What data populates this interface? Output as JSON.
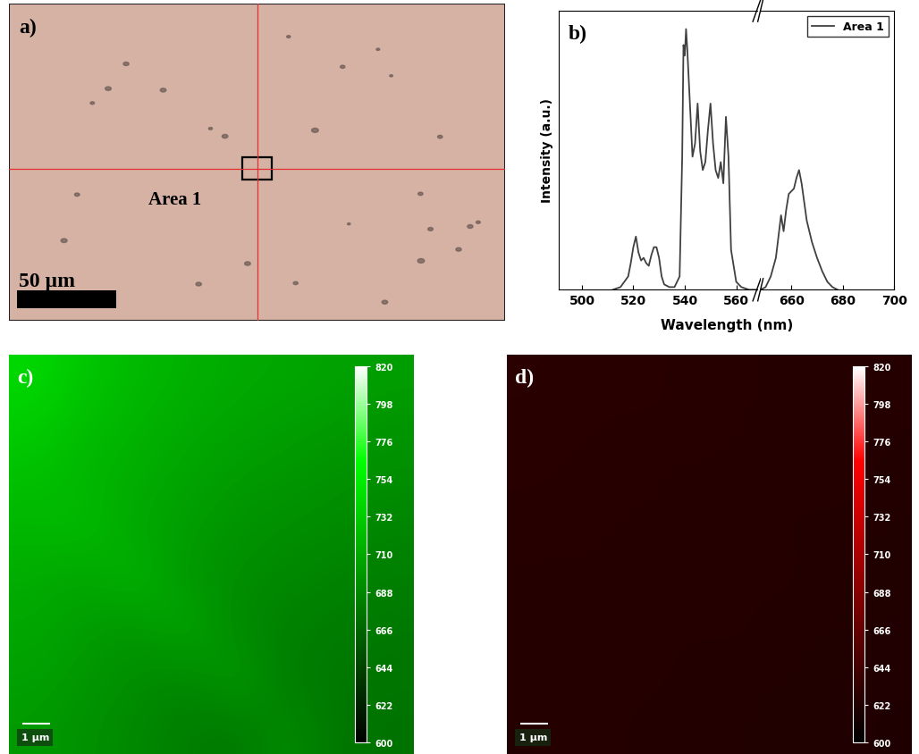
{
  "chart_data": [
    {
      "type": "image",
      "label": "a)",
      "annotations": [
        "Area 1",
        "50 µm"
      ],
      "color": "#d6b2a4"
    },
    {
      "type": "line",
      "label": "b)",
      "x_label": "Wavelength (nm)",
      "y_label": "Intensity (a.u.)",
      "xlim": [
        [
          491,
          568
        ],
        [
          648,
          700
        ]
      ],
      "xticks": [
        500,
        520,
        540,
        560,
        660,
        680,
        700
      ],
      "ylim": [
        0,
        1.05
      ],
      "tick_labels": "x",
      "legend": "upper right",
      "series": [
        {
          "name": "Area 1",
          "color": "#404040",
          "x": [
            512,
            515,
            518,
            519,
            520,
            521,
            522,
            523,
            524,
            525,
            526,
            527,
            528,
            529,
            530,
            531,
            532,
            534,
            536,
            538,
            539,
            539.5,
            540,
            540.5,
            541,
            542,
            543,
            544,
            545,
            546,
            547,
            548,
            549,
            550,
            551,
            552,
            553,
            554,
            555,
            556,
            557,
            558,
            560,
            562,
            565,
            570,
            648,
            650,
            652,
            654,
            655,
            656,
            657,
            658,
            659,
            660,
            661,
            662,
            663,
            664,
            665,
            666,
            668,
            670,
            672,
            674,
            676,
            678
          ],
          "values": [
            0,
            0.01,
            0.05,
            0.1,
            0.16,
            0.2,
            0.14,
            0.11,
            0.12,
            0.1,
            0.09,
            0.13,
            0.16,
            0.16,
            0.12,
            0.05,
            0.02,
            0.01,
            0.01,
            0.05,
            0.5,
            0.92,
            0.88,
            0.98,
            0.9,
            0.7,
            0.5,
            0.55,
            0.7,
            0.52,
            0.45,
            0.48,
            0.6,
            0.7,
            0.55,
            0.45,
            0.42,
            0.48,
            0.4,
            0.65,
            0.5,
            0.15,
            0.03,
            0.01,
            0,
            0,
            0,
            0.01,
            0.05,
            0.12,
            0.2,
            0.28,
            0.22,
            0.3,
            0.36,
            0.37,
            0.38,
            0.42,
            0.45,
            0.4,
            0.33,
            0.26,
            0.18,
            0.12,
            0.07,
            0.03,
            0.01,
            0
          ]
        }
      ]
    },
    {
      "type": "heatmap",
      "label": "c)",
      "color": "#00ff00",
      "tick_labels": false,
      "annotations": [
        "1 µm"
      ],
      "cells": [
        [
          740,
          728,
          720,
          715,
          710,
          708,
          705,
          702
        ],
        [
          732,
          722,
          716,
          710,
          706,
          702,
          700,
          696
        ],
        [
          724,
          718,
          712,
          706,
          700,
          698,
          694,
          692
        ],
        [
          718,
          722,
          708,
          702,
          696,
          692,
          690,
          686
        ],
        [
          712,
          706,
          718,
          698,
          692,
          688,
          685,
          682
        ],
        [
          708,
          702,
          696,
          710,
          688,
          684,
          680,
          678
        ],
        [
          704,
          698,
          692,
          686,
          702,
          680,
          678,
          676
        ],
        [
          700,
          694,
          688,
          682,
          678,
          692,
          676,
          674
        ]
      ],
      "colorbar_range": [
        600,
        820
      ],
      "colorbar_ticks": [
        600,
        622,
        644,
        666,
        688,
        710,
        732,
        754,
        776,
        798,
        820
      ]
    },
    {
      "type": "heatmap",
      "label": "d)",
      "color": "#ff0000",
      "tick_labels": false,
      "annotations": [
        "1 µm"
      ],
      "cells": [
        [
          628,
          626,
          627,
          625,
          626,
          624,
          625,
          624
        ],
        [
          627,
          626,
          625,
          626,
          625,
          624,
          624,
          623
        ],
        [
          626,
          625,
          626,
          624,
          625,
          623,
          624,
          623
        ],
        [
          625,
          626,
          624,
          625,
          624,
          623,
          623,
          622
        ],
        [
          625,
          624,
          625,
          624,
          623,
          624,
          622,
          622
        ],
        [
          624,
          625,
          624,
          623,
          624,
          622,
          623,
          621
        ],
        [
          624,
          623,
          624,
          623,
          622,
          623,
          621,
          621
        ],
        [
          623,
          624,
          623,
          622,
          623,
          621,
          622,
          620
        ]
      ],
      "colorbar_range": [
        600,
        820
      ],
      "colorbar_ticks": [
        600,
        622,
        644,
        666,
        688,
        710,
        732,
        754,
        776,
        798,
        820
      ]
    }
  ]
}
